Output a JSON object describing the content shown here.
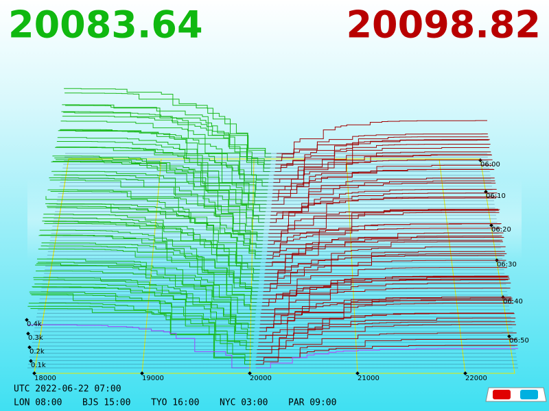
{
  "header": {
    "bid": "20083.64",
    "ask": "20098.82"
  },
  "price_axis": {
    "labels": [
      "18000",
      "19000",
      "20000",
      "21000",
      "22000"
    ]
  },
  "depth_axis": {
    "labels": [
      "0.1k",
      "0.2k",
      "0.3k",
      "0.4k"
    ]
  },
  "time_axis": {
    "labels": [
      "06:00",
      "06:10",
      "06:20",
      "06:30",
      "06:40",
      "06:50"
    ]
  },
  "footer": {
    "utc": "UTC 2022-06-22 07:00",
    "clocks": [
      "LON 08:00",
      "BJS 15:00",
      "TYO 16:00",
      "NYC 03:00",
      "PAR 09:00"
    ]
  }
}
